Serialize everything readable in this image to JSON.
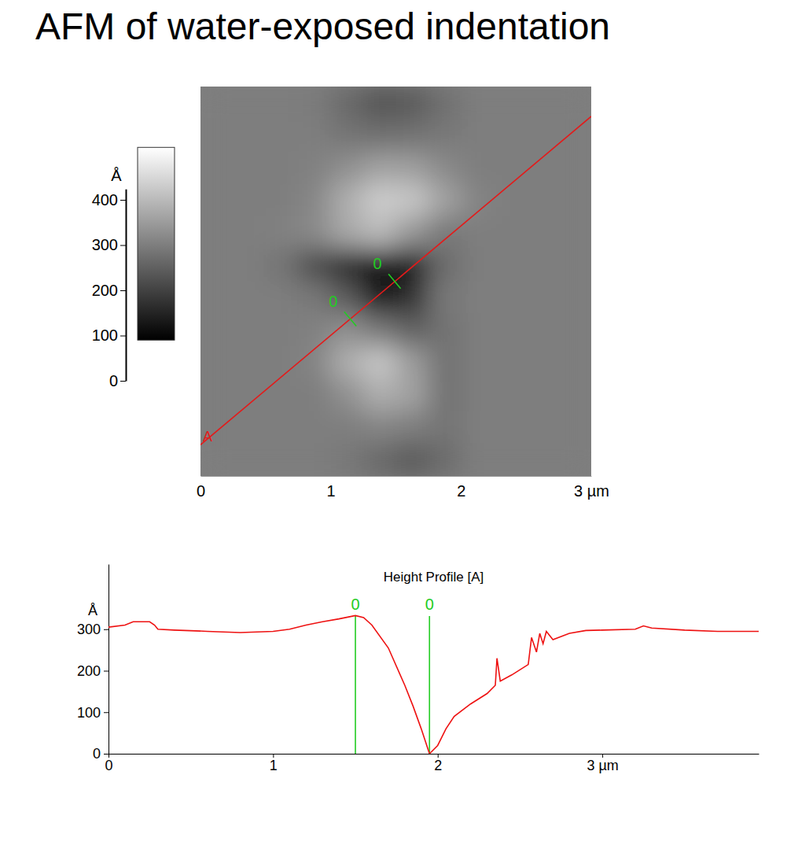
{
  "chart_data": [
    {
      "type": "heatmap",
      "title": "AFM of water-exposed indentation",
      "xlim": [
        0,
        3
      ],
      "ylim": [
        0,
        3
      ],
      "xticks": [
        0,
        1,
        2,
        {
          "value": 3,
          "label": "3 µm"
        }
      ],
      "tick_labels": "x",
      "cells": [
        [
          300,
          300,
          300,
          295,
          265,
          230,
          240,
          275,
          300,
          300,
          300,
          300
        ],
        [
          300,
          300,
          300,
          300,
          285,
          275,
          280,
          290,
          300,
          300,
          300,
          300
        ],
        [
          300,
          300,
          300,
          305,
          330,
          360,
          355,
          320,
          300,
          300,
          300,
          300
        ],
        [
          300,
          300,
          300,
          315,
          380,
          430,
          420,
          360,
          310,
          300,
          300,
          300
        ],
        [
          300,
          300,
          305,
          320,
          370,
          400,
          340,
          290,
          300,
          300,
          300,
          300
        ],
        [
          300,
          300,
          285,
          220,
          160,
          110,
          140,
          270,
          300,
          300,
          300,
          300
        ],
        [
          300,
          300,
          300,
          290,
          240,
          120,
          170,
          290,
          300,
          300,
          300,
          300
        ],
        [
          300,
          300,
          300,
          305,
          330,
          290,
          250,
          280,
          300,
          300,
          300,
          300
        ],
        [
          300,
          300,
          300,
          310,
          380,
          420,
          350,
          280,
          300,
          300,
          300,
          300
        ],
        [
          300,
          300,
          300,
          300,
          330,
          380,
          360,
          280,
          300,
          300,
          300,
          300
        ],
        [
          300,
          300,
          300,
          300,
          300,
          310,
          300,
          285,
          300,
          300,
          300,
          300
        ],
        [
          300,
          300,
          300,
          300,
          290,
          265,
          240,
          270,
          300,
          300,
          300,
          300
        ]
      ],
      "colorbar": {
        "label": "Å",
        "range": [
          90,
          516
        ],
        "axis_range": [
          0,
          424
        ],
        "ticks": [
          0,
          100,
          200,
          300,
          400
        ]
      },
      "profile_line": {
        "label": "A",
        "start": [
          0,
          0.24
        ],
        "end": [
          3,
          2.77
        ],
        "color": "#e41a1a"
      },
      "cursors": {
        "x": [
          1.15,
          1.49
        ],
        "y": [
          1.21,
          1.5
        ],
        "labels": [
          "0",
          "0"
        ],
        "color": "#22cc22"
      }
    },
    {
      "type": "line",
      "title": "Height Profile [A]",
      "y_label": "Å",
      "x": [
        0,
        0.1,
        0.15,
        0.25,
        0.28,
        0.3,
        0.4,
        0.6,
        0.8,
        1.0,
        1.1,
        1.2,
        1.3,
        1.4,
        1.5,
        1.55,
        1.6,
        1.7,
        1.8,
        1.85,
        1.9,
        1.95,
        2.0,
        2.05,
        2.1,
        2.2,
        2.3,
        2.35,
        2.36,
        2.38,
        2.45,
        2.55,
        2.57,
        2.6,
        2.62,
        2.64,
        2.66,
        2.7,
        2.8,
        2.9,
        3.0,
        3.2,
        3.25,
        3.3,
        3.5,
        3.7,
        3.95
      ],
      "series": [
        {
          "color": "#ee1111",
          "values": [
            305,
            310,
            318,
            318,
            310,
            300,
            298,
            295,
            292,
            295,
            300,
            310,
            318,
            325,
            333,
            328,
            310,
            255,
            165,
            115,
            60,
            0,
            20,
            60,
            90,
            120,
            145,
            165,
            230,
            175,
            190,
            215,
            280,
            245,
            290,
            265,
            295,
            275,
            290,
            297,
            298,
            300,
            308,
            303,
            298,
            295,
            295
          ]
        }
      ],
      "xlim": [
        0,
        3.95
      ],
      "ylim": [
        0,
        457
      ],
      "xticks": [
        0,
        1,
        2,
        {
          "value": 3,
          "label": "3 µm"
        }
      ],
      "yticks": [
        0,
        100,
        200,
        300
      ],
      "cursors": {
        "x": [
          1.5,
          1.95
        ],
        "labels": [
          "0",
          "0"
        ],
        "color": "#22cc22"
      }
    }
  ]
}
